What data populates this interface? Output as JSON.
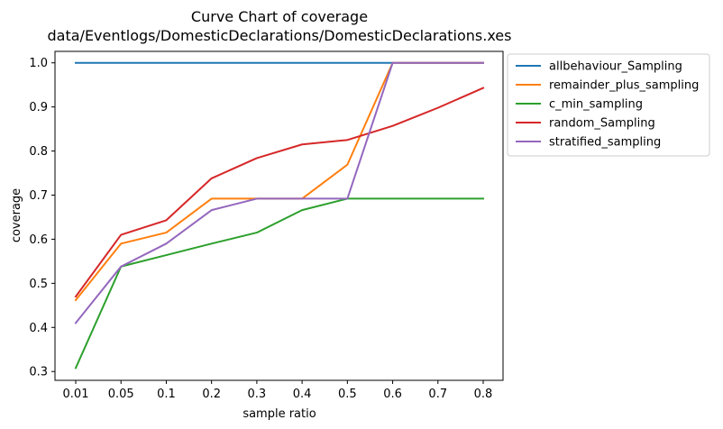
{
  "chart_data": {
    "type": "line",
    "title_line1": "Curve Chart of coverage",
    "title_line2": "data/Eventlogs/DomesticDeclarations/DomesticDeclarations.xes",
    "xlabel": "sample ratio",
    "ylabel": "coverage",
    "categories": [
      "0.01",
      "0.05",
      "0.1",
      "0.2",
      "0.3",
      "0.4",
      "0.5",
      "0.6",
      "0.7",
      "0.8"
    ],
    "yticks": [
      "0.3",
      "0.4",
      "0.5",
      "0.6",
      "0.7",
      "0.8",
      "0.9",
      "1.0"
    ],
    "ylim": [
      0.28,
      1.026
    ],
    "grid": false,
    "legend_position": "outside-right-top",
    "series": [
      {
        "name": "allbehaviour_Sampling",
        "color": "#1f77b4",
        "values": [
          1.0,
          1.0,
          1.0,
          1.0,
          1.0,
          1.0,
          1.0,
          1.0,
          1.0,
          1.0
        ]
      },
      {
        "name": "remainder_plus_sampling",
        "color": "#ff7f0e",
        "values": [
          0.462,
          0.59,
          0.615,
          0.692,
          0.692,
          0.692,
          0.769,
          1.0,
          1.0,
          1.0
        ]
      },
      {
        "name": "c_min_sampling",
        "color": "#2ca02c",
        "values": [
          0.308,
          0.538,
          0.564,
          0.59,
          0.615,
          0.666,
          0.692,
          0.692,
          0.692,
          0.692
        ]
      },
      {
        "name": "random_Sampling",
        "color": "#d62728",
        "values": [
          0.47,
          0.61,
          0.643,
          0.738,
          0.784,
          0.815,
          0.825,
          0.857,
          0.898,
          0.943
        ]
      },
      {
        "name": "stratified_sampling",
        "color": "#9467bd",
        "values": [
          0.41,
          0.538,
          0.59,
          0.666,
          0.692,
          0.692,
          0.692,
          1.0,
          1.0,
          1.0
        ]
      }
    ]
  }
}
